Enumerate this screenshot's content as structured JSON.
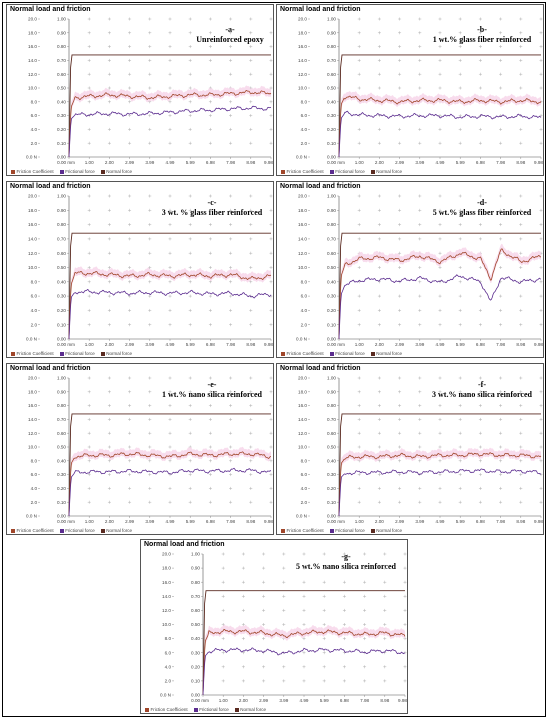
{
  "page": {
    "panel_title": "Normal load and friction",
    "legend": [
      "Friction Coefficient",
      "Frictional force",
      "Normal force"
    ],
    "colors": {
      "friction_coefficient": "#a0462a",
      "frictional_force": "#5b2c8f",
      "normal_force": "#5a2a20",
      "fill": "#f7d6ea",
      "marker": "#b0b0b0"
    }
  },
  "chart_data": [
    {
      "type": "line",
      "label_line1": "-a-",
      "label_line2": "Unreinforced epoxy",
      "x_ticks": [
        "0.00 mm",
        "1.00",
        "2.00",
        "2.99",
        "3.99",
        "4.99",
        "5.99",
        "6.98",
        "7.98",
        "8.98",
        "9.98"
      ],
      "left_ticks": [
        "0.0 N",
        "2.0",
        "4.0",
        "6.0",
        "8.0",
        "10.0",
        "12.0",
        "14.0",
        "16.0",
        "18.0",
        "20.0"
      ],
      "right_ticks": [
        "0.00",
        "0.10",
        "0.20",
        "0.30",
        "0.40",
        "0.50",
        "0.60",
        "0.70",
        "0.80",
        "0.90",
        "1.00"
      ],
      "xlim": [
        0,
        9.98
      ],
      "ylim_force": [
        0,
        20
      ],
      "ylim_cof": [
        0,
        1
      ],
      "series": [
        {
          "name": "Normal force",
          "unit": "N",
          "x": [
            0,
            0.08,
            0.15,
            9.98
          ],
          "y": [
            0,
            13,
            14.8,
            14.8
          ]
        },
        {
          "name": "Friction Coefficient",
          "x": [
            0,
            0.1,
            0.3,
            1,
            2,
            3,
            4,
            5,
            6,
            7,
            8,
            9,
            9.98
          ],
          "y": [
            0,
            0.36,
            0.43,
            0.44,
            0.45,
            0.44,
            0.43,
            0.44,
            0.45,
            0.45,
            0.46,
            0.47,
            0.46
          ]
        },
        {
          "name": "Frictional force",
          "unit": "N",
          "x": [
            0,
            0.1,
            0.3,
            1,
            2,
            3,
            4,
            5,
            6,
            7,
            8,
            9,
            9.98
          ],
          "y": [
            0,
            5.5,
            6.1,
            6.2,
            6.3,
            6.2,
            6.3,
            6.5,
            6.7,
            6.8,
            7.0,
            7.1,
            7.0
          ]
        }
      ]
    },
    {
      "type": "line",
      "label_line1": "-b-",
      "label_line2": "1 wt.% glass fiber reinforced",
      "x_ticks": [
        "0.00 mm",
        "1.00",
        "2.00",
        "2.99",
        "3.99",
        "4.99",
        "5.99",
        "6.98",
        "7.98",
        "8.98",
        "9.98"
      ],
      "left_ticks": [
        "0.0 N",
        "2.0",
        "4.0",
        "6.0",
        "8.0",
        "10.0",
        "12.0",
        "14.0",
        "16.0",
        "18.0",
        "20.0"
      ],
      "right_ticks": [
        "0.00",
        "0.10",
        "0.20",
        "0.30",
        "0.40",
        "0.50",
        "0.60",
        "0.70",
        "0.80",
        "0.90",
        "1.00"
      ],
      "xlim": [
        0,
        9.98
      ],
      "ylim_force": [
        0,
        20
      ],
      "ylim_cof": [
        0,
        1
      ],
      "series": [
        {
          "name": "Normal force",
          "unit": "N",
          "x": [
            0,
            0.08,
            0.15,
            9.98
          ],
          "y": [
            0,
            13,
            14.8,
            14.8
          ]
        },
        {
          "name": "Friction Coefficient",
          "x": [
            0,
            0.1,
            0.3,
            1,
            2,
            3,
            4,
            5,
            6,
            7,
            8,
            9,
            9.98
          ],
          "y": [
            0,
            0.38,
            0.44,
            0.42,
            0.41,
            0.4,
            0.41,
            0.41,
            0.4,
            0.41,
            0.4,
            0.41,
            0.4
          ]
        },
        {
          "name": "Frictional force",
          "unit": "N",
          "x": [
            0,
            0.1,
            0.3,
            1,
            2,
            3,
            4,
            5,
            6,
            7,
            8,
            9,
            9.98
          ],
          "y": [
            0,
            5.6,
            6.4,
            6.1,
            6.0,
            5.9,
            6.0,
            6.0,
            5.8,
            5.9,
            5.8,
            5.9,
            5.7
          ]
        }
      ]
    },
    {
      "type": "line",
      "label_line1": "-c-",
      "label_line2": "3 wt. % glass fiber reinforced",
      "x_ticks": [
        "0.00 mm",
        "1.00",
        "2.00",
        "2.99",
        "3.99",
        "4.99",
        "5.99",
        "6.98",
        "7.98",
        "8.98",
        "9.98"
      ],
      "left_ticks": [
        "0.0 N",
        "2.0",
        "4.0",
        "6.0",
        "8.0",
        "10.0",
        "12.0",
        "14.0",
        "16.0",
        "18.0",
        "20.0"
      ],
      "right_ticks": [
        "0.00",
        "0.10",
        "0.20",
        "0.30",
        "0.40",
        "0.50",
        "0.60",
        "0.70",
        "0.80",
        "0.90",
        "1.00"
      ],
      "xlim": [
        0,
        9.98
      ],
      "ylim_force": [
        0,
        20
      ],
      "ylim_cof": [
        0,
        1
      ],
      "series": [
        {
          "name": "Normal force",
          "unit": "N",
          "x": [
            0,
            0.08,
            0.15,
            9.98
          ],
          "y": [
            0,
            13,
            14.8,
            14.8
          ]
        },
        {
          "name": "Friction Coefficient",
          "x": [
            0,
            0.1,
            0.3,
            1,
            2,
            3,
            4,
            5,
            6,
            7,
            8,
            9,
            9.98
          ],
          "y": [
            0,
            0.38,
            0.46,
            0.46,
            0.45,
            0.44,
            0.45,
            0.44,
            0.45,
            0.44,
            0.45,
            0.42,
            0.44
          ]
        },
        {
          "name": "Frictional force",
          "unit": "N",
          "x": [
            0,
            0.1,
            0.3,
            1,
            2,
            3,
            4,
            5,
            6,
            7,
            8,
            9,
            9.98
          ],
          "y": [
            0,
            5.8,
            6.6,
            6.6,
            6.5,
            6.4,
            6.5,
            6.4,
            6.5,
            6.3,
            6.4,
            6.0,
            6.3
          ]
        }
      ]
    },
    {
      "type": "line",
      "label_line1": "-d-",
      "label_line2": "5 wt.% glass fiber reinforced",
      "x_ticks": [
        "0.00 mm",
        "1.00",
        "2.00",
        "2.99",
        "3.99",
        "4.99",
        "5.99",
        "6.98",
        "7.98",
        "8.98",
        "9.98"
      ],
      "left_ticks": [
        "0.0 N",
        "2.0",
        "4.0",
        "6.0",
        "8.0",
        "10.0",
        "12.0",
        "14.0",
        "16.0",
        "18.0",
        "20.0"
      ],
      "right_ticks": [
        "0.00",
        "0.10",
        "0.20",
        "0.30",
        "0.40",
        "0.50",
        "0.60",
        "0.70",
        "0.80",
        "0.90",
        "1.00"
      ],
      "xlim": [
        0,
        9.98
      ],
      "ylim_force": [
        0,
        20
      ],
      "ylim_cof": [
        0,
        1
      ],
      "series": [
        {
          "name": "Normal force",
          "unit": "N",
          "x": [
            0,
            0.08,
            0.15,
            9.98
          ],
          "y": [
            0,
            13,
            14.8,
            14.8
          ]
        },
        {
          "name": "Friction Coefficient",
          "x": [
            0,
            0.1,
            0.3,
            1,
            2,
            3,
            4,
            5,
            6,
            7,
            7.5,
            8,
            9,
            9.98
          ],
          "y": [
            0,
            0.44,
            0.52,
            0.56,
            0.57,
            0.55,
            0.58,
            0.54,
            0.6,
            0.56,
            0.42,
            0.62,
            0.54,
            0.58
          ]
        },
        {
          "name": "Frictional force",
          "unit": "N",
          "x": [
            0,
            0.1,
            0.3,
            1,
            2,
            3,
            4,
            5,
            6,
            7,
            7.5,
            8,
            9,
            9.98
          ],
          "y": [
            0,
            6.2,
            7.6,
            8.2,
            8.4,
            8.1,
            8.5,
            7.9,
            8.8,
            8.0,
            5.2,
            8.6,
            8.0,
            8.4
          ]
        }
      ]
    },
    {
      "type": "line",
      "label_line1": "-e-",
      "label_line2": "1 wt.% nano silica reinforced",
      "x_ticks": [
        "0.00 mm",
        "1.00",
        "2.00",
        "2.99",
        "3.99",
        "4.99",
        "5.99",
        "6.98",
        "7.98",
        "8.98",
        "9.98"
      ],
      "left_ticks": [
        "0.0 N",
        "2.0",
        "4.0",
        "6.0",
        "8.0",
        "10.0",
        "12.0",
        "14.0",
        "16.0",
        "18.0",
        "20.0"
      ],
      "right_ticks": [
        "0.00",
        "0.10",
        "0.20",
        "0.30",
        "0.40",
        "0.50",
        "0.60",
        "0.70",
        "0.80",
        "0.90",
        "1.00"
      ],
      "xlim": [
        0,
        9.98
      ],
      "ylim_force": [
        0,
        20
      ],
      "ylim_cof": [
        0,
        1
      ],
      "series": [
        {
          "name": "Normal force",
          "unit": "N",
          "x": [
            0,
            0.08,
            0.15,
            9.98
          ],
          "y": [
            0,
            13,
            14.8,
            14.8
          ]
        },
        {
          "name": "Friction Coefficient",
          "x": [
            0,
            0.1,
            0.3,
            1,
            2,
            3,
            4,
            5,
            6,
            7,
            8,
            9,
            9.98
          ],
          "y": [
            0,
            0.38,
            0.43,
            0.44,
            0.44,
            0.45,
            0.44,
            0.43,
            0.45,
            0.44,
            0.45,
            0.45,
            0.43
          ]
        },
        {
          "name": "Frictional force",
          "unit": "N",
          "x": [
            0,
            0.1,
            0.3,
            1,
            2,
            3,
            4,
            5,
            6,
            7,
            8,
            9,
            9.98
          ],
          "y": [
            0,
            5.6,
            6.3,
            6.4,
            6.4,
            6.5,
            6.4,
            6.3,
            6.6,
            6.5,
            6.6,
            6.6,
            6.3
          ]
        }
      ]
    },
    {
      "type": "line",
      "label_line1": "-f-",
      "label_line2": "3 wt.% nano silica reinforced",
      "x_ticks": [
        "0.00 mm",
        "1.00",
        "2.00",
        "2.99",
        "3.99",
        "4.99",
        "5.99",
        "6.98",
        "7.98",
        "8.98",
        "9.98"
      ],
      "left_ticks": [
        "0.0 N",
        "2.0",
        "4.0",
        "6.0",
        "8.0",
        "10.0",
        "12.0",
        "14.0",
        "16.0",
        "18.0",
        "20.0"
      ],
      "right_ticks": [
        "0.00",
        "0.10",
        "0.20",
        "0.30",
        "0.40",
        "0.50",
        "0.60",
        "0.70",
        "0.80",
        "0.90",
        "1.00"
      ],
      "xlim": [
        0,
        9.98
      ],
      "ylim_force": [
        0,
        20
      ],
      "ylim_cof": [
        0,
        1
      ],
      "series": [
        {
          "name": "Normal force",
          "unit": "N",
          "x": [
            0,
            0.08,
            0.15,
            9.98
          ],
          "y": [
            0,
            13,
            14.8,
            14.8
          ]
        },
        {
          "name": "Friction Coefficient",
          "x": [
            0,
            0.1,
            0.3,
            1,
            2,
            3,
            4,
            5,
            6,
            7,
            8,
            9,
            9.98
          ],
          "y": [
            0,
            0.38,
            0.42,
            0.43,
            0.43,
            0.44,
            0.43,
            0.44,
            0.44,
            0.45,
            0.44,
            0.44,
            0.43
          ]
        },
        {
          "name": "Frictional force",
          "unit": "N",
          "x": [
            0,
            0.1,
            0.3,
            1,
            2,
            3,
            4,
            5,
            6,
            7,
            8,
            9,
            9.98
          ],
          "y": [
            0,
            5.6,
            6.2,
            6.3,
            6.3,
            6.4,
            6.3,
            6.4,
            6.5,
            6.6,
            6.4,
            6.5,
            6.3
          ]
        }
      ]
    },
    {
      "type": "line",
      "label_line1": "-g-",
      "label_line2": "5 wt.% nano silica reinforced",
      "x_ticks": [
        "0.00 mm",
        "1.00",
        "2.00",
        "2.99",
        "3.99",
        "4.99",
        "5.99",
        "6.98",
        "7.98",
        "8.98",
        "9.98"
      ],
      "left_ticks": [
        "0.0 N",
        "2.0",
        "4.0",
        "6.0",
        "8.0",
        "10.0",
        "12.0",
        "14.0",
        "16.0",
        "18.0",
        "20.0"
      ],
      "right_ticks": [
        "0.00",
        "0.10",
        "0.20",
        "0.30",
        "0.40",
        "0.50",
        "0.60",
        "0.70",
        "0.80",
        "0.90",
        "1.00"
      ],
      "xlim": [
        0,
        9.98
      ],
      "ylim_force": [
        0,
        20
      ],
      "ylim_cof": [
        0,
        1
      ],
      "series": [
        {
          "name": "Normal force",
          "unit": "N",
          "x": [
            0,
            0.08,
            0.15,
            9.98
          ],
          "y": [
            0,
            13,
            14.8,
            14.8
          ]
        },
        {
          "name": "Friction Coefficient",
          "x": [
            0,
            0.1,
            0.3,
            1,
            2,
            3,
            4,
            5,
            6,
            7,
            8,
            9,
            9.98
          ],
          "y": [
            0,
            0.38,
            0.44,
            0.45,
            0.45,
            0.44,
            0.42,
            0.44,
            0.45,
            0.44,
            0.43,
            0.44,
            0.42
          ]
        },
        {
          "name": "Frictional force",
          "unit": "N",
          "x": [
            0,
            0.1,
            0.3,
            1,
            2,
            3,
            4,
            5,
            6,
            7,
            8,
            9,
            9.98
          ],
          "y": [
            0,
            5.5,
            6.2,
            6.4,
            6.4,
            6.3,
            5.9,
            6.3,
            6.4,
            6.3,
            6.1,
            6.3,
            6.0
          ]
        }
      ]
    }
  ]
}
